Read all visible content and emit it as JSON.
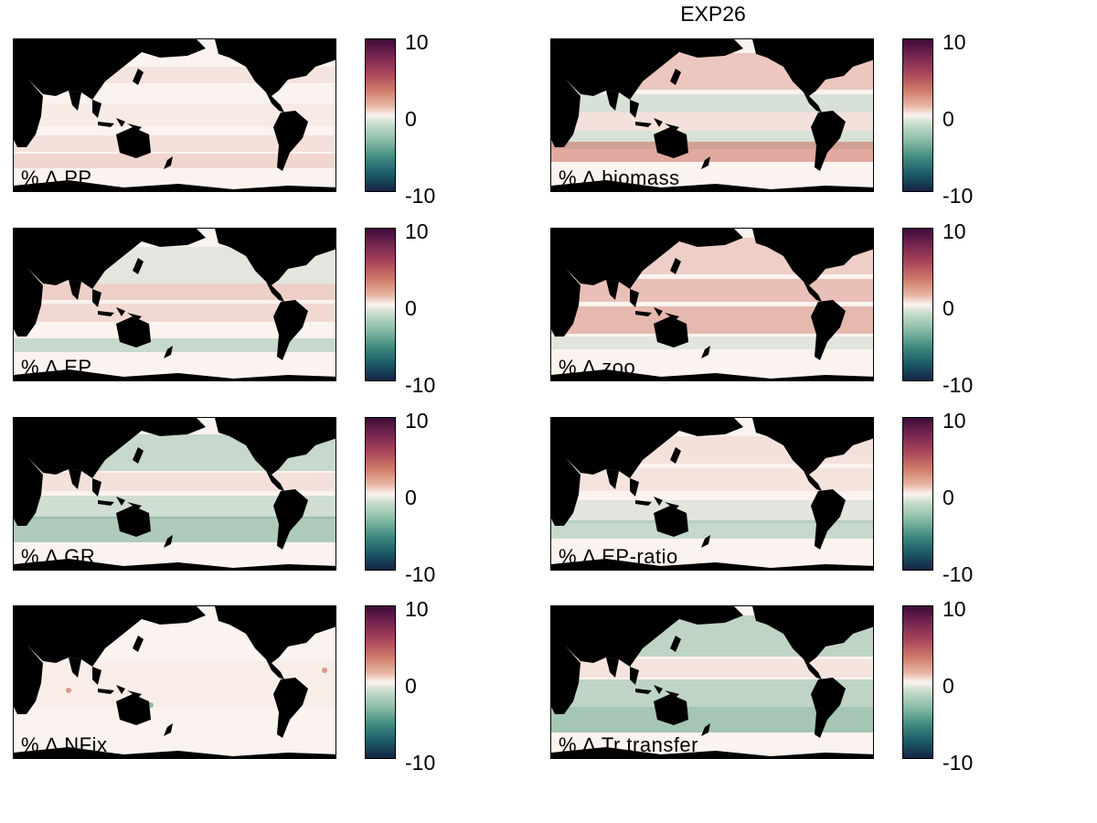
{
  "figure": {
    "title": "EXP26"
  },
  "colorbar": {
    "max_label": "10",
    "mid_label": "0",
    "min_label": "-10"
  },
  "colors": {
    "land": "#000000",
    "ocean_base": "#fbf3ef",
    "positive": "#c9624f",
    "negative": "#4f9a79"
  },
  "chart_data": [
    {
      "type": "heatmap",
      "label": "% ∆ PP",
      "vmin": -10,
      "vmax": 10,
      "colormap": "diverging teal-white-maroon"
    },
    {
      "type": "heatmap",
      "label": "% ∆ biomass",
      "vmin": -10,
      "vmax": 10,
      "colormap": "diverging teal-white-maroon"
    },
    {
      "type": "heatmap",
      "label": "% ∆ EP",
      "vmin": -10,
      "vmax": 10,
      "colormap": "diverging teal-white-maroon"
    },
    {
      "type": "heatmap",
      "label": "% ∆ zoo",
      "vmin": -10,
      "vmax": 10,
      "colormap": "diverging teal-white-maroon"
    },
    {
      "type": "heatmap",
      "label": "% ∆ GR",
      "vmin": -10,
      "vmax": 10,
      "colormap": "diverging teal-white-maroon"
    },
    {
      "type": "heatmap",
      "label": "% ∆ EP-ratio",
      "vmin": -10,
      "vmax": 10,
      "colormap": "diverging teal-white-maroon"
    },
    {
      "type": "heatmap",
      "label": "% ∆ NFix",
      "vmin": -10,
      "vmax": 10,
      "colormap": "diverging teal-white-maroon"
    },
    {
      "type": "heatmap",
      "label": "% ∆ Tr transfer",
      "vmin": -10,
      "vmax": 10,
      "colormap": "diverging teal-white-maroon"
    }
  ]
}
